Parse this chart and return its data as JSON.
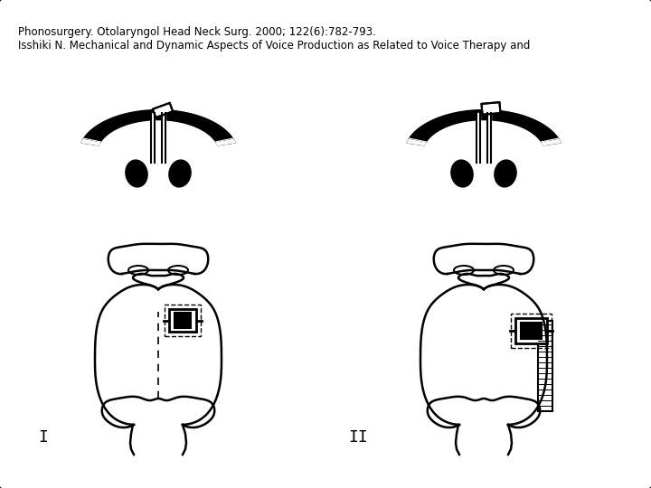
{
  "caption_line1": "Isshiki N. Mechanical and Dynamic Aspects of Voice Production as Related to Voice Therapy and",
  "caption_line2": "Phonosurgery. Otolaryngol Head Neck Surg. 2000; 122(6):782-793.",
  "caption_fontsize": 8.5,
  "label_I": "I",
  "label_II": "II",
  "bg_color": "#ffffff",
  "border_color": "#000000",
  "line_color": "#000000",
  "fig_width": 7.2,
  "fig_height": 5.4,
  "dpi": 100
}
